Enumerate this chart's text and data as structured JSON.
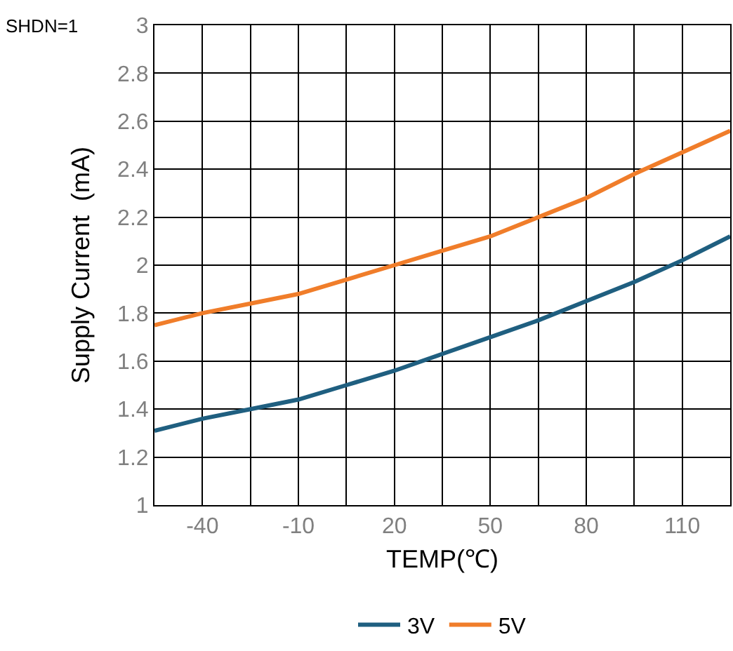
{
  "chart_data": {
    "type": "line",
    "xlabel": "TEMP(℃)",
    "ylabel": "Supply Current  (mA)",
    "annotations": [
      "SHDN=1"
    ],
    "series": [
      {
        "name": "3V",
        "color": "#1f5f80",
        "x": [
          -55,
          -40,
          -25,
          -10,
          5,
          20,
          35,
          50,
          65,
          80,
          95,
          110,
          125
        ],
        "values": [
          1.31,
          1.36,
          1.4,
          1.44,
          1.5,
          1.56,
          1.63,
          1.7,
          1.77,
          1.85,
          1.93,
          2.02,
          2.12
        ]
      },
      {
        "name": "5V",
        "color": "#f07d2a",
        "x": [
          -55,
          -40,
          -25,
          -10,
          5,
          20,
          35,
          50,
          65,
          80,
          95,
          110,
          125
        ],
        "values": [
          1.75,
          1.8,
          1.84,
          1.88,
          1.94,
          2.0,
          2.06,
          2.12,
          2.2,
          2.28,
          2.38,
          2.47,
          2.56
        ]
      }
    ],
    "xlim": [
      -55,
      125
    ],
    "xticks": [
      {
        "value": -55,
        "label": null
      },
      -40,
      {
        "value": -25,
        "label": null
      },
      -10,
      {
        "value": 5,
        "label": null
      },
      20,
      {
        "value": 35,
        "label": null
      },
      50,
      {
        "value": 65,
        "label": null
      },
      80,
      {
        "value": 95,
        "label": null
      },
      110,
      {
        "value": 125,
        "label": null
      }
    ],
    "ylim": [
      1,
      3
    ],
    "yticks": [
      1,
      1.2,
      1.4,
      1.6,
      1.8,
      2,
      2.2,
      2.4,
      2.6,
      2.8,
      3
    ],
    "grid": true,
    "legend": "bottom",
    "marker": "none",
    "line_style": "solid"
  }
}
